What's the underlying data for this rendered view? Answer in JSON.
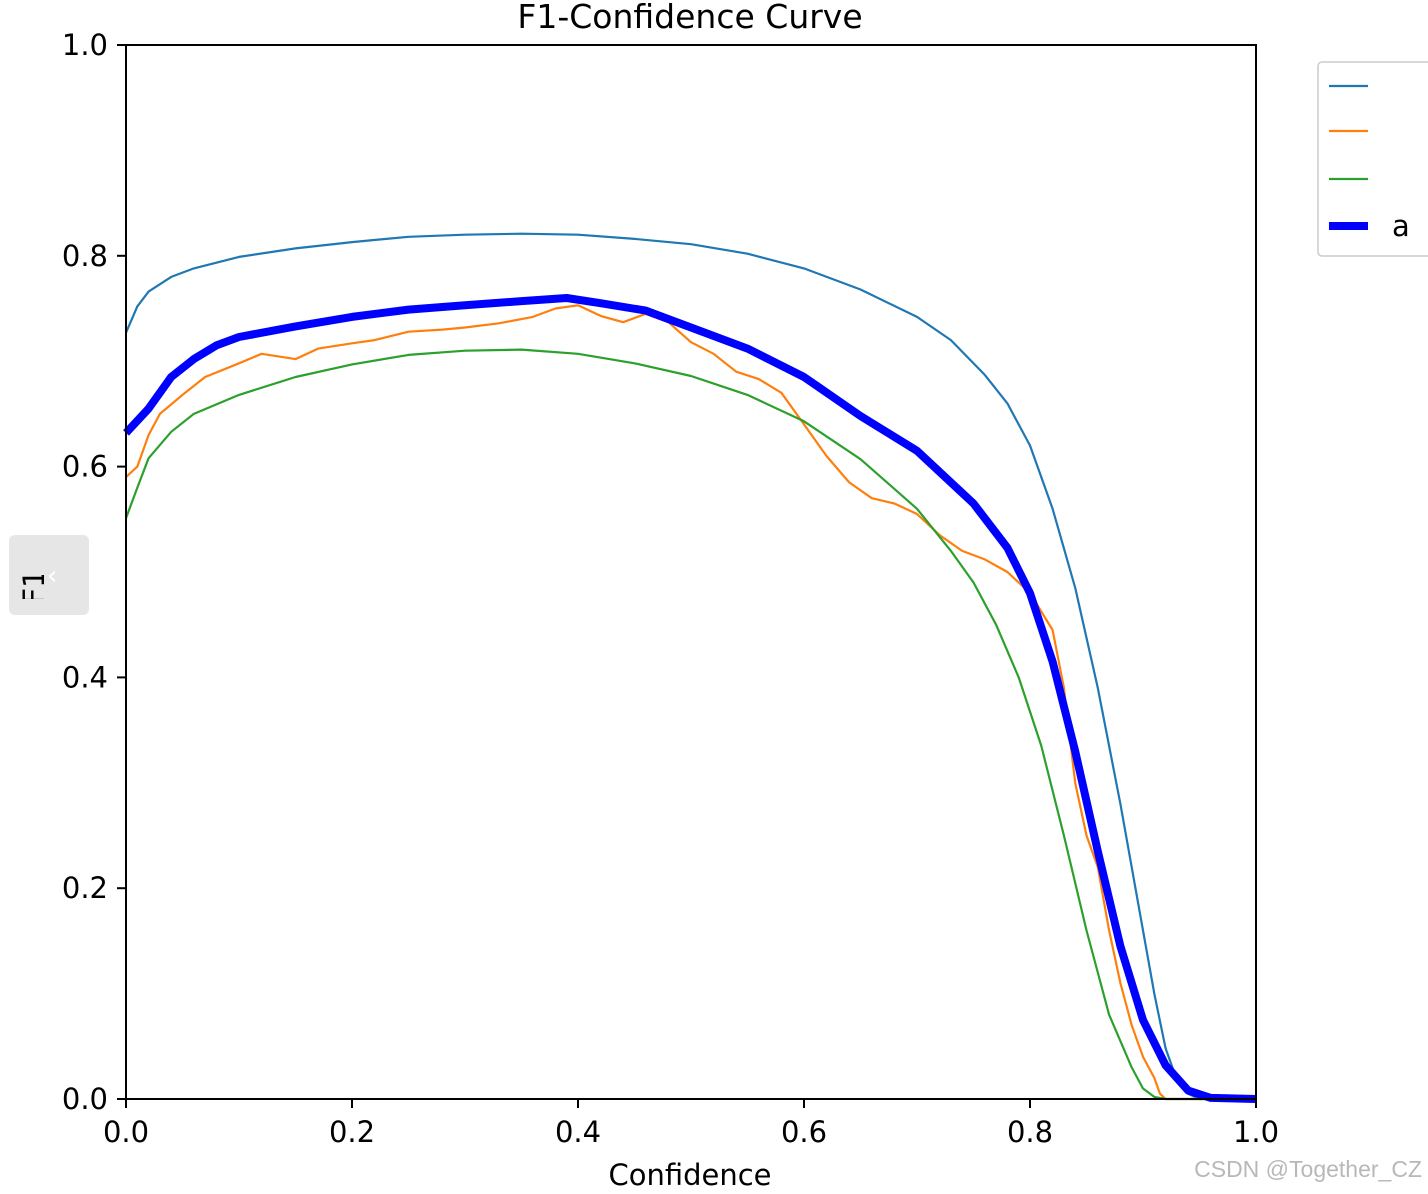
{
  "page": {
    "watermark": "CSDN @Together_CZ"
  },
  "icons": {
    "collapse": "chevron-left-icon"
  },
  "chart_data": {
    "type": "line",
    "title": "F1-Confidence Curve",
    "xlabel": "Confidence",
    "ylabel": "F1",
    "xlim": [
      0,
      1
    ],
    "ylim": [
      0,
      1
    ],
    "xticks": [
      "0.0",
      "0.2",
      "0.4",
      "0.6",
      "0.8",
      "1.0"
    ],
    "yticks": [
      "0.0",
      "0.2",
      "0.4",
      "0.6",
      "0.8",
      "1.0"
    ],
    "grid": false,
    "legend": {
      "placement": "outside-right-top",
      "labels": [
        "",
        "",
        "",
        "a"
      ]
    },
    "series": [
      {
        "color": "#1f77b4",
        "width": "thin",
        "points": [
          [
            0,
            0.727
          ],
          [
            0.01,
            0.752
          ],
          [
            0.02,
            0.766
          ],
          [
            0.04,
            0.78
          ],
          [
            0.06,
            0.788
          ],
          [
            0.1,
            0.799
          ],
          [
            0.15,
            0.807
          ],
          [
            0.2,
            0.813
          ],
          [
            0.25,
            0.818
          ],
          [
            0.3,
            0.82
          ],
          [
            0.35,
            0.821
          ],
          [
            0.4,
            0.82
          ],
          [
            0.45,
            0.816
          ],
          [
            0.5,
            0.811
          ],
          [
            0.55,
            0.802
          ],
          [
            0.6,
            0.788
          ],
          [
            0.65,
            0.768
          ],
          [
            0.7,
            0.742
          ],
          [
            0.73,
            0.72
          ],
          [
            0.76,
            0.687
          ],
          [
            0.78,
            0.66
          ],
          [
            0.8,
            0.62
          ],
          [
            0.82,
            0.56
          ],
          [
            0.84,
            0.485
          ],
          [
            0.86,
            0.39
          ],
          [
            0.88,
            0.28
          ],
          [
            0.9,
            0.16
          ],
          [
            0.91,
            0.1
          ],
          [
            0.92,
            0.048
          ],
          [
            0.93,
            0.018
          ],
          [
            0.94,
            0.005
          ],
          [
            0.95,
            0
          ],
          [
            1,
            0
          ]
        ]
      },
      {
        "color": "#ff7f0e",
        "width": "thin",
        "points": [
          [
            0,
            0.59
          ],
          [
            0.01,
            0.6
          ],
          [
            0.02,
            0.63
          ],
          [
            0.03,
            0.65
          ],
          [
            0.05,
            0.668
          ],
          [
            0.07,
            0.685
          ],
          [
            0.1,
            0.698
          ],
          [
            0.12,
            0.707
          ],
          [
            0.15,
            0.702
          ],
          [
            0.17,
            0.712
          ],
          [
            0.2,
            0.717
          ],
          [
            0.22,
            0.72
          ],
          [
            0.25,
            0.728
          ],
          [
            0.28,
            0.73
          ],
          [
            0.3,
            0.732
          ],
          [
            0.33,
            0.736
          ],
          [
            0.36,
            0.742
          ],
          [
            0.38,
            0.75
          ],
          [
            0.4,
            0.753
          ],
          [
            0.42,
            0.743
          ],
          [
            0.44,
            0.737
          ],
          [
            0.46,
            0.745
          ],
          [
            0.48,
            0.737
          ],
          [
            0.5,
            0.718
          ],
          [
            0.52,
            0.707
          ],
          [
            0.54,
            0.69
          ],
          [
            0.56,
            0.683
          ],
          [
            0.58,
            0.67
          ],
          [
            0.6,
            0.64
          ],
          [
            0.62,
            0.61
          ],
          [
            0.64,
            0.585
          ],
          [
            0.66,
            0.57
          ],
          [
            0.68,
            0.565
          ],
          [
            0.7,
            0.555
          ],
          [
            0.72,
            0.535
          ],
          [
            0.74,
            0.52
          ],
          [
            0.76,
            0.512
          ],
          [
            0.78,
            0.5
          ],
          [
            0.8,
            0.48
          ],
          [
            0.82,
            0.445
          ],
          [
            0.83,
            0.39
          ],
          [
            0.84,
            0.3
          ],
          [
            0.85,
            0.25
          ],
          [
            0.86,
            0.22
          ],
          [
            0.87,
            0.16
          ],
          [
            0.88,
            0.11
          ],
          [
            0.89,
            0.07
          ],
          [
            0.9,
            0.04
          ],
          [
            0.91,
            0.02
          ],
          [
            0.915,
            0.005
          ],
          [
            0.92,
            0
          ],
          [
            1,
            0
          ]
        ]
      },
      {
        "color": "#2ca02c",
        "width": "thin",
        "points": [
          [
            0,
            0.551
          ],
          [
            0.01,
            0.58
          ],
          [
            0.02,
            0.608
          ],
          [
            0.04,
            0.633
          ],
          [
            0.06,
            0.65
          ],
          [
            0.1,
            0.668
          ],
          [
            0.15,
            0.685
          ],
          [
            0.2,
            0.697
          ],
          [
            0.25,
            0.706
          ],
          [
            0.3,
            0.71
          ],
          [
            0.35,
            0.711
          ],
          [
            0.4,
            0.707
          ],
          [
            0.45,
            0.698
          ],
          [
            0.5,
            0.686
          ],
          [
            0.55,
            0.668
          ],
          [
            0.6,
            0.643
          ],
          [
            0.65,
            0.607
          ],
          [
            0.7,
            0.56
          ],
          [
            0.73,
            0.52
          ],
          [
            0.75,
            0.49
          ],
          [
            0.77,
            0.45
          ],
          [
            0.79,
            0.4
          ],
          [
            0.81,
            0.335
          ],
          [
            0.83,
            0.25
          ],
          [
            0.85,
            0.16
          ],
          [
            0.87,
            0.08
          ],
          [
            0.89,
            0.03
          ],
          [
            0.9,
            0.01
          ],
          [
            0.91,
            0.002
          ],
          [
            0.92,
            0
          ],
          [
            1,
            0
          ]
        ]
      },
      {
        "color": "#0000ff",
        "width": "thick",
        "legend_label": "a",
        "points": [
          [
            0,
            0.632
          ],
          [
            0.02,
            0.655
          ],
          [
            0.04,
            0.685
          ],
          [
            0.06,
            0.702
          ],
          [
            0.08,
            0.715
          ],
          [
            0.1,
            0.723
          ],
          [
            0.15,
            0.733
          ],
          [
            0.2,
            0.742
          ],
          [
            0.25,
            0.749
          ],
          [
            0.3,
            0.753
          ],
          [
            0.35,
            0.757
          ],
          [
            0.39,
            0.76
          ],
          [
            0.42,
            0.755
          ],
          [
            0.46,
            0.748
          ],
          [
            0.5,
            0.732
          ],
          [
            0.55,
            0.712
          ],
          [
            0.6,
            0.685
          ],
          [
            0.65,
            0.648
          ],
          [
            0.7,
            0.615
          ],
          [
            0.75,
            0.565
          ],
          [
            0.78,
            0.523
          ],
          [
            0.8,
            0.48
          ],
          [
            0.82,
            0.415
          ],
          [
            0.84,
            0.33
          ],
          [
            0.86,
            0.235
          ],
          [
            0.88,
            0.145
          ],
          [
            0.9,
            0.075
          ],
          [
            0.92,
            0.032
          ],
          [
            0.94,
            0.008
          ],
          [
            0.96,
            0.001
          ],
          [
            1,
            0
          ]
        ]
      }
    ]
  }
}
